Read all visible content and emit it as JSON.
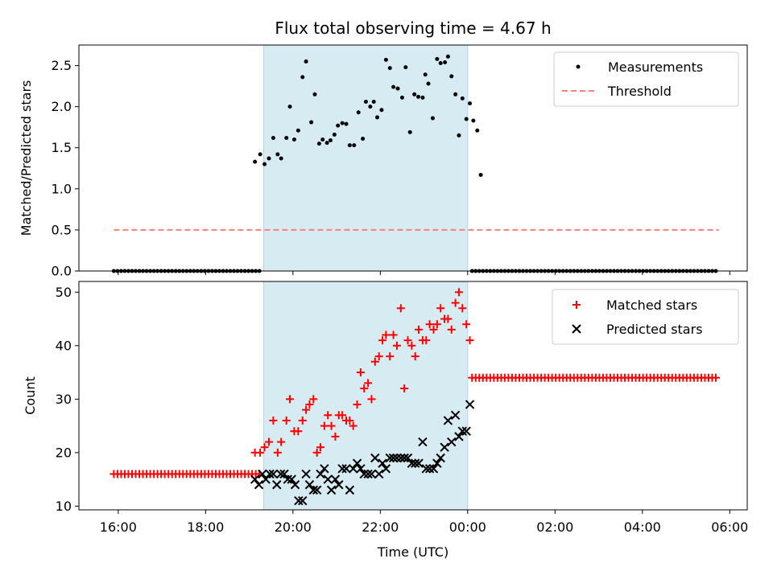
{
  "figure": {
    "title": "Flux total observing time = 4.67 h",
    "xlabel": "Time (UTC)",
    "xtick_labels": [
      "16:00",
      "18:00",
      "20:00",
      "22:00",
      "00:00",
      "02:00",
      "04:00",
      "06:00"
    ]
  },
  "colors": {
    "band": "#add8e6",
    "threshold": "#ff7f7f",
    "matched": "#ff0000",
    "predicted": "#000000",
    "measurement": "#000000"
  },
  "chart_data": [
    {
      "type": "scatter",
      "panel": "top",
      "title": "Flux total observing time = 4.67 h",
      "xlabel": "",
      "ylabel": "Matched/Predicted stars",
      "x_unit": "hours since 00:00 UTC of first day",
      "xlim": [
        15.1,
        30.4
      ],
      "ylim": [
        0,
        2.75
      ],
      "yticks": [
        0.0,
        0.5,
        1.0,
        1.5,
        2.0,
        2.5
      ],
      "ytick_labels": [
        "0.0",
        "0.5",
        "1.0",
        "1.5",
        "2.0",
        "2.5"
      ],
      "shaded_interval": [
        19.33,
        24.0
      ],
      "legend": {
        "position": "top-right",
        "entries": [
          "Measurements",
          "Threshold"
        ]
      },
      "threshold": {
        "name": "Threshold",
        "value": 0.5,
        "x_range": [
          15.9,
          29.75
        ]
      },
      "series": [
        {
          "name": "Measurements",
          "zero_before_range": [
            15.9,
            19.25
          ],
          "zero_after_range": [
            24.1,
            29.75
          ],
          "zero_step": 0.0833,
          "points": [
            [
              19.13,
              1.33
            ],
            [
              19.25,
              1.42
            ],
            [
              19.35,
              1.3
            ],
            [
              19.45,
              1.37
            ],
            [
              19.55,
              1.62
            ],
            [
              19.65,
              1.42
            ],
            [
              19.73,
              1.37
            ],
            [
              19.85,
              1.62
            ],
            [
              19.93,
              2.0
            ],
            [
              20.03,
              1.6
            ],
            [
              20.12,
              1.71
            ],
            [
              20.22,
              2.36
            ],
            [
              20.3,
              2.55
            ],
            [
              20.42,
              1.81
            ],
            [
              20.5,
              2.15
            ],
            [
              20.6,
              1.55
            ],
            [
              20.68,
              1.6
            ],
            [
              20.78,
              1.56
            ],
            [
              20.86,
              1.59
            ],
            [
              20.95,
              1.66
            ],
            [
              21.03,
              1.77
            ],
            [
              21.13,
              1.8
            ],
            [
              21.22,
              1.79
            ],
            [
              21.3,
              1.53
            ],
            [
              21.4,
              1.53
            ],
            [
              21.5,
              1.93
            ],
            [
              21.6,
              1.61
            ],
            [
              21.67,
              2.06
            ],
            [
              21.77,
              2.0
            ],
            [
              21.85,
              2.06
            ],
            [
              21.93,
              1.87
            ],
            [
              22.03,
              1.96
            ],
            [
              22.13,
              2.57
            ],
            [
              22.22,
              2.47
            ],
            [
              22.3,
              2.24
            ],
            [
              22.4,
              2.22
            ],
            [
              22.5,
              2.11
            ],
            [
              22.58,
              2.48
            ],
            [
              22.68,
              1.69
            ],
            [
              22.78,
              2.15
            ],
            [
              22.87,
              2.12
            ],
            [
              22.97,
              2.11
            ],
            [
              23.03,
              2.39
            ],
            [
              23.1,
              2.28
            ],
            [
              23.2,
              1.86
            ],
            [
              23.3,
              2.58
            ],
            [
              23.38,
              2.53
            ],
            [
              23.48,
              2.54
            ],
            [
              23.55,
              2.61
            ],
            [
              23.63,
              2.37
            ],
            [
              23.72,
              2.15
            ],
            [
              23.8,
              1.65
            ],
            [
              23.88,
              2.1
            ],
            [
              23.97,
              1.85
            ],
            [
              24.05,
              2.04
            ],
            [
              24.13,
              1.83
            ],
            [
              24.22,
              1.71
            ],
            [
              24.3,
              1.17
            ]
          ]
        }
      ]
    },
    {
      "type": "scatter",
      "panel": "bottom",
      "xlabel": "Time (UTC)",
      "ylabel": "Count",
      "x_unit": "hours since 00:00 UTC of first day",
      "xlim": [
        15.1,
        30.4
      ],
      "ylim": [
        9.3,
        52
      ],
      "yticks": [
        10,
        20,
        30,
        40,
        50
      ],
      "ytick_labels": [
        "10",
        "20",
        "30",
        "40",
        "50"
      ],
      "xticks": [
        16,
        18,
        20,
        22,
        24,
        26,
        28,
        30
      ],
      "xtick_labels": [
        "16:00",
        "18:00",
        "20:00",
        "22:00",
        "00:00",
        "02:00",
        "04:00",
        "06:00"
      ],
      "shaded_interval": [
        19.33,
        24.0
      ],
      "legend": {
        "position": "top-right",
        "entries": [
          "Matched stars",
          "Predicted stars"
        ]
      },
      "series": [
        {
          "name": "Matched stars",
          "marker": "plus",
          "flat_segments": [
            {
              "value": 16,
              "x_range": [
                15.9,
                19.25
              ]
            },
            {
              "value": 34,
              "x_range": [
                24.1,
                29.75
              ]
            }
          ],
          "flat_step": 0.0833,
          "points": [
            [
              19.13,
              20
            ],
            [
              19.25,
              20
            ],
            [
              19.35,
              21
            ],
            [
              19.45,
              22
            ],
            [
              19.55,
              26
            ],
            [
              19.65,
              20
            ],
            [
              19.73,
              22
            ],
            [
              19.85,
              26
            ],
            [
              19.93,
              30
            ],
            [
              20.03,
              24
            ],
            [
              20.12,
              24
            ],
            [
              20.22,
              26
            ],
            [
              20.3,
              28
            ],
            [
              20.38,
              29
            ],
            [
              20.47,
              30
            ],
            [
              20.55,
              20
            ],
            [
              20.63,
              21
            ],
            [
              20.72,
              25
            ],
            [
              20.8,
              27
            ],
            [
              20.88,
              25
            ],
            [
              20.97,
              23
            ],
            [
              21.05,
              27
            ],
            [
              21.13,
              27
            ],
            [
              21.22,
              26
            ],
            [
              21.3,
              26
            ],
            [
              21.38,
              25
            ],
            [
              21.47,
              29
            ],
            [
              21.55,
              35
            ],
            [
              21.63,
              32
            ],
            [
              21.72,
              33
            ],
            [
              21.8,
              30
            ],
            [
              21.88,
              37
            ],
            [
              21.97,
              38
            ],
            [
              22.05,
              41
            ],
            [
              22.13,
              42
            ],
            [
              22.22,
              38
            ],
            [
              22.3,
              42
            ],
            [
              22.38,
              40
            ],
            [
              22.47,
              47
            ],
            [
              22.55,
              32
            ],
            [
              22.63,
              41
            ],
            [
              22.72,
              40
            ],
            [
              22.8,
              38
            ],
            [
              22.88,
              43
            ],
            [
              22.97,
              41
            ],
            [
              23.05,
              41
            ],
            [
              23.13,
              44
            ],
            [
              23.22,
              43
            ],
            [
              23.3,
              44
            ],
            [
              23.38,
              47
            ],
            [
              23.47,
              45
            ],
            [
              23.55,
              45
            ],
            [
              23.63,
              43
            ],
            [
              23.72,
              48
            ],
            [
              23.8,
              50
            ],
            [
              23.88,
              47
            ],
            [
              23.97,
              44
            ],
            [
              24.05,
              41
            ]
          ]
        },
        {
          "name": "Predicted stars",
          "marker": "x",
          "points": [
            [
              19.13,
              15
            ],
            [
              19.22,
              14
            ],
            [
              19.3,
              16
            ],
            [
              19.38,
              15
            ],
            [
              19.47,
              16
            ],
            [
              19.55,
              16
            ],
            [
              19.63,
              14
            ],
            [
              19.72,
              16
            ],
            [
              19.8,
              16
            ],
            [
              19.88,
              15
            ],
            [
              19.97,
              15
            ],
            [
              20.05,
              14
            ],
            [
              20.13,
              11
            ],
            [
              20.22,
              11
            ],
            [
              20.3,
              16
            ],
            [
              20.38,
              14
            ],
            [
              20.47,
              13
            ],
            [
              20.55,
              13
            ],
            [
              20.63,
              16
            ],
            [
              20.72,
              17
            ],
            [
              20.8,
              15
            ],
            [
              20.88,
              13
            ],
            [
              20.97,
              15
            ],
            [
              21.05,
              14
            ],
            [
              21.13,
              17
            ],
            [
              21.22,
              17
            ],
            [
              21.3,
              13
            ],
            [
              21.38,
              17
            ],
            [
              21.47,
              18
            ],
            [
              21.55,
              17
            ],
            [
              21.63,
              16
            ],
            [
              21.72,
              16
            ],
            [
              21.8,
              16
            ],
            [
              21.88,
              19
            ],
            [
              21.97,
              16
            ],
            [
              22.05,
              18
            ],
            [
              22.13,
              17
            ],
            [
              22.22,
              19
            ],
            [
              22.3,
              19
            ],
            [
              22.38,
              19
            ],
            [
              22.47,
              19
            ],
            [
              22.55,
              19
            ],
            [
              22.63,
              19
            ],
            [
              22.72,
              18
            ],
            [
              22.8,
              18
            ],
            [
              22.88,
              18
            ],
            [
              22.97,
              22
            ],
            [
              23.05,
              17
            ],
            [
              23.13,
              17
            ],
            [
              23.22,
              17
            ],
            [
              23.3,
              18
            ],
            [
              23.38,
              19
            ],
            [
              23.47,
              21
            ],
            [
              23.55,
              26
            ],
            [
              23.63,
              22
            ],
            [
              23.72,
              27
            ],
            [
              23.8,
              23
            ],
            [
              23.88,
              24
            ],
            [
              23.97,
              24
            ],
            [
              24.05,
              29
            ]
          ]
        }
      ]
    }
  ]
}
